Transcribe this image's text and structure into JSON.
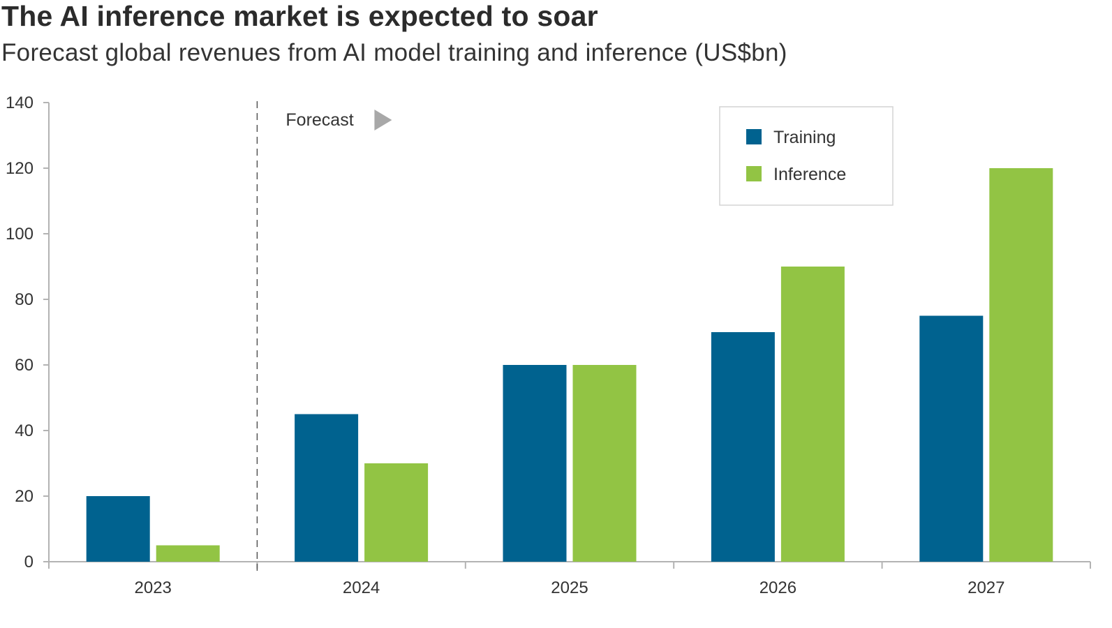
{
  "chart_data": {
    "type": "bar",
    "title": "The AI inference market is expected to soar",
    "subtitle": "Forecast global revenues from AI model training and inference (US$bn)",
    "categories": [
      "2023",
      "2024",
      "2025",
      "2026",
      "2027"
    ],
    "series": [
      {
        "name": "Training",
        "color": "#00628f",
        "values": [
          20,
          45,
          60,
          70,
          75
        ]
      },
      {
        "name": "Inference",
        "color": "#92c444",
        "values": [
          5,
          30,
          60,
          90,
          120
        ]
      }
    ],
    "ylim": [
      0,
      140
    ],
    "yticks": [
      "0",
      "20",
      "40",
      "60",
      "80",
      "100",
      "120",
      "140"
    ],
    "xlabel": "",
    "ylabel": "",
    "grid": false,
    "legend": {
      "placement": "top-right",
      "bordered": true
    },
    "annotation": {
      "text": "Forecast",
      "icon": "right-triangle-icon",
      "after_category": "2023"
    },
    "axis_color": "#b3b3b3",
    "divider_color": "#555555"
  }
}
